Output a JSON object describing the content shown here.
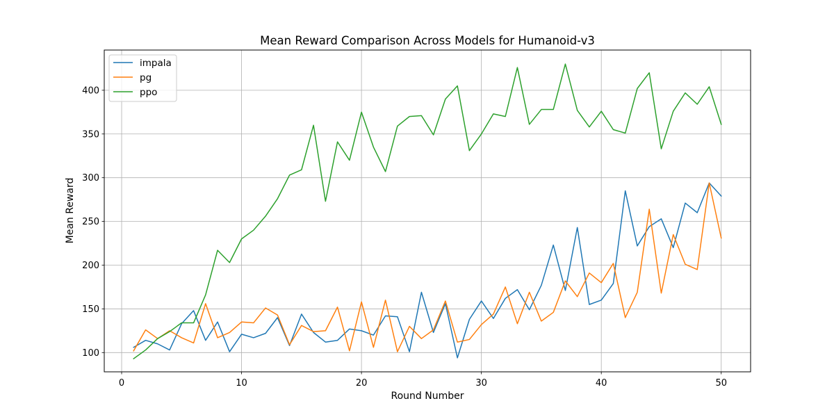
{
  "chart_data": {
    "type": "line",
    "title": "Mean Reward Comparison Across Models for Humanoid-v3",
    "xlabel": "Round Number",
    "ylabel": "Mean Reward",
    "xlim": [
      -1.45,
      52.45
    ],
    "ylim": [
      78,
      446
    ],
    "xticks": [
      0,
      10,
      20,
      30,
      40,
      50
    ],
    "yticks": [
      100,
      150,
      200,
      250,
      300,
      350,
      400
    ],
    "grid": true,
    "legend_position": "top-left",
    "x": [
      1,
      2,
      3,
      4,
      5,
      6,
      7,
      8,
      9,
      10,
      11,
      12,
      13,
      14,
      15,
      16,
      17,
      18,
      19,
      20,
      21,
      22,
      23,
      24,
      25,
      26,
      27,
      28,
      29,
      30,
      31,
      32,
      33,
      34,
      35,
      36,
      37,
      38,
      39,
      40,
      41,
      42,
      43,
      44,
      45,
      46,
      47,
      48,
      49,
      50
    ],
    "series": [
      {
        "name": "impala",
        "color": "#1f77b4",
        "values": [
          106,
          114,
          110,
          103,
          133,
          148,
          114,
          135,
          101,
          121,
          117,
          122,
          140,
          108,
          144,
          123,
          112,
          114,
          127,
          125,
          120,
          142,
          141,
          101,
          169,
          123,
          156,
          94,
          138,
          159,
          139,
          162,
          172,
          149,
          177,
          223,
          171,
          243,
          155,
          160,
          179,
          285,
          222,
          244,
          253,
          220,
          271,
          260,
          294,
          279
        ]
      },
      {
        "name": "pg",
        "color": "#ff7f0e",
        "values": [
          102,
          126,
          116,
          125,
          117,
          111,
          156,
          117,
          123,
          135,
          134,
          151,
          143,
          109,
          131,
          124,
          125,
          152,
          102,
          158,
          106,
          160,
          101,
          130,
          116,
          126,
          159,
          112,
          115,
          132,
          144,
          175,
          133,
          169,
          136,
          146,
          182,
          164,
          191,
          180,
          202,
          140,
          169,
          264,
          168,
          235,
          201,
          195,
          294,
          231
        ]
      },
      {
        "name": "ppo",
        "color": "#2ca02c",
        "values": [
          93,
          103,
          116,
          124,
          134,
          134,
          166,
          217,
          203,
          230,
          240,
          256,
          276,
          303,
          309,
          360,
          273,
          341,
          320,
          375,
          335,
          307,
          359,
          370,
          371,
          349,
          390,
          405,
          331,
          350,
          373,
          370,
          426,
          361,
          378,
          378,
          430,
          377,
          358,
          376,
          355,
          351,
          402,
          420,
          333,
          376,
          397,
          384,
          404,
          361
        ]
      }
    ]
  }
}
